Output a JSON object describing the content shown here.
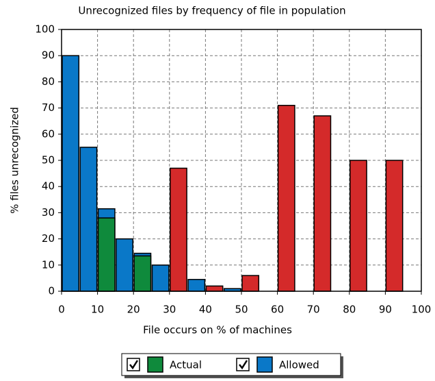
{
  "chart_data": {
    "type": "histogram",
    "title": "Unrecognized files by frequency of file in population",
    "x_label": "File occurs on % of machines",
    "y_label": "% files unrecognized",
    "bins": [
      0,
      5,
      10,
      15,
      20,
      25,
      30,
      35,
      40,
      45,
      50,
      55,
      60,
      65,
      70,
      75,
      80,
      85,
      90,
      95,
      100
    ],
    "series": [
      {
        "name": "Allowed",
        "color": "#0a78c8",
        "values": [
          90,
          55,
          31.5,
          20,
          14.5,
          10,
          null,
          4.5,
          null,
          1,
          null,
          null,
          null,
          null,
          null,
          null,
          null,
          null,
          null,
          null
        ]
      },
      {
        "name": "Actual",
        "color": "#0f8a3c",
        "over_color": "#d42a2a",
        "values": [
          null,
          null,
          28,
          null,
          13.5,
          null,
          47,
          null,
          2,
          null,
          6,
          null,
          71,
          null,
          67,
          null,
          50,
          null,
          50,
          null
        ]
      }
    ],
    "xlim": [
      0,
      100
    ],
    "ylim": [
      0,
      100
    ],
    "xticks": [
      0,
      10,
      20,
      30,
      40,
      50,
      60,
      70,
      80,
      90,
      100
    ],
    "yticks": [
      0,
      10,
      20,
      30,
      40,
      50,
      60,
      70,
      80,
      90,
      100
    ],
    "grid": true
  }
}
